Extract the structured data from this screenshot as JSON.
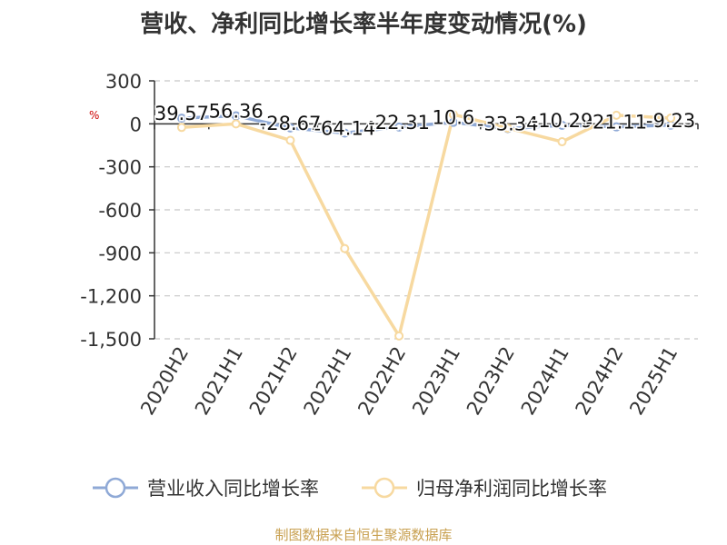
{
  "title": "营收、净利同比增长率半年度变动情况(%)",
  "unit_label": "%",
  "source": "制图数据来自恒生聚源数据库",
  "chart_data": {
    "type": "line",
    "title": "营收、净利同比增长率半年度变动情况(%)",
    "ylabel": "%",
    "categories": [
      "2020H2",
      "2021H1",
      "2021H2",
      "2022H1",
      "2022H2",
      "2023H1",
      "2023H2",
      "2024H1",
      "2024H2",
      "2025H1"
    ],
    "ylim": [
      -1500,
      300
    ],
    "yticks": [
      300,
      0,
      -300,
      -600,
      -900,
      -1200,
      -1500
    ],
    "ytick_labels": [
      "300",
      "0",
      "-300",
      "-600",
      "-900",
      "-1,200",
      "-1,500"
    ],
    "grid": true,
    "legend_position": "bottom",
    "series": [
      {
        "name": "营业收入同比增长率",
        "color": "#8fa9d6",
        "values": [
          39.57,
          56.36,
          -28.67,
          -64.14,
          -22.31,
          10.6,
          -33.34,
          -10.29,
          -21.11,
          -9.23
        ],
        "labels": [
          "39.57",
          "56.36",
          "-28.67",
          "-64.14",
          "-22.31",
          "10.6",
          "-33.34",
          "-10.29",
          "-21.11",
          "-9.23"
        ]
      },
      {
        "name": "归母净利润同比增长率",
        "color": "#f7d9a0",
        "values": [
          -25,
          0,
          -115,
          -870,
          -1480,
          65,
          -30,
          -125,
          60,
          40
        ]
      }
    ]
  }
}
